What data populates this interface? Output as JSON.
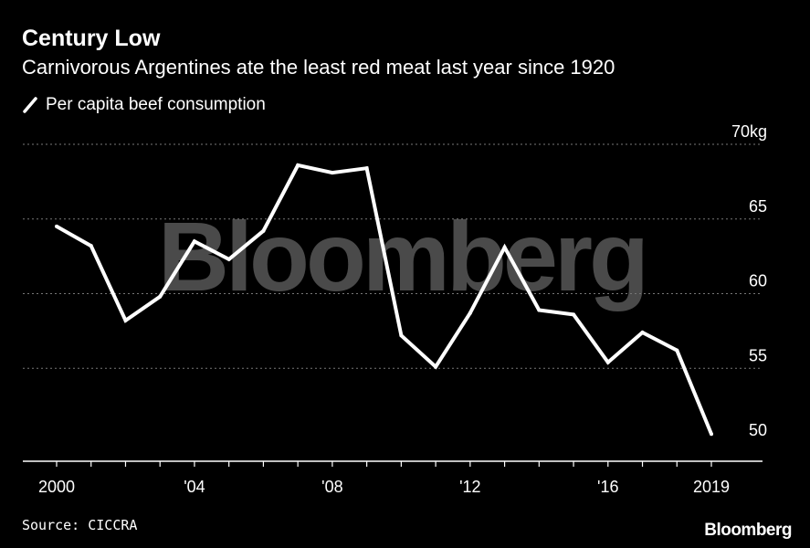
{
  "header": {
    "title": "Century Low",
    "subtitle": "Carnivorous Argentines ate the least red meat last year since 1920"
  },
  "legend": {
    "label": "Per capita beef consumption"
  },
  "footer": {
    "source": "Source: CICCRA",
    "brand": "Bloomberg"
  },
  "watermark": "Bloomberg",
  "colors": {
    "background": "#000000",
    "line": "#ffffff",
    "grid": "#777777",
    "watermark": "#4a4a4a"
  },
  "chart_data": {
    "type": "line",
    "title": "Century Low",
    "subtitle": "Carnivorous Argentines ate the least red meat last year since 1920",
    "xlabel": "",
    "ylabel": "",
    "x": [
      2000,
      2001,
      2002,
      2003,
      2004,
      2005,
      2006,
      2007,
      2008,
      2009,
      2010,
      2011,
      2012,
      2013,
      2014,
      2015,
      2016,
      2017,
      2018,
      2019
    ],
    "series": [
      {
        "name": "Per capita beef consumption",
        "values": [
          64.5,
          63.2,
          58.2,
          59.8,
          63.5,
          62.3,
          64.2,
          68.6,
          68.1,
          68.4,
          57.2,
          55.1,
          58.7,
          63.1,
          58.9,
          58.6,
          55.4,
          57.4,
          56.2,
          50.6
        ]
      }
    ],
    "xlim": [
      1999.6,
      2020.5
    ],
    "ylim": [
      50,
      70
    ],
    "x_ticks": [
      2000,
      2004,
      2008,
      2012,
      2016,
      2019
    ],
    "x_tick_labels": [
      "2000",
      "'04",
      "'08",
      "'12",
      "'16",
      "2019"
    ],
    "y_ticks": [
      50,
      55,
      60,
      65,
      70
    ],
    "y_tick_labels": [
      "50",
      "55",
      "60",
      "65",
      "70kg"
    ],
    "grid": true,
    "legend_position": "top-left"
  }
}
